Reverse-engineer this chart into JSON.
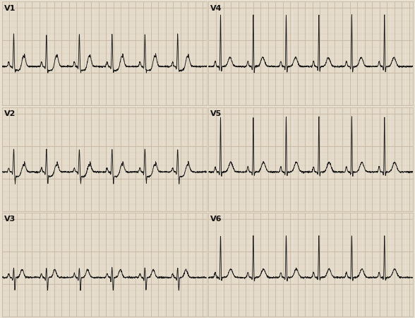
{
  "background_color": "#e8e0d0",
  "grid_minor_color": "#d4c8b8",
  "grid_major_color": "#c8b8a4",
  "ecg_color": "#1a1a1a",
  "label_color": "#111111",
  "fig_width": 5.88,
  "fig_height": 4.5,
  "dpi": 100,
  "hr": 68,
  "noise_level": 0.006,
  "panel_labels": [
    "V1",
    "V4",
    "V2",
    "V5",
    "V3",
    "V6"
  ]
}
